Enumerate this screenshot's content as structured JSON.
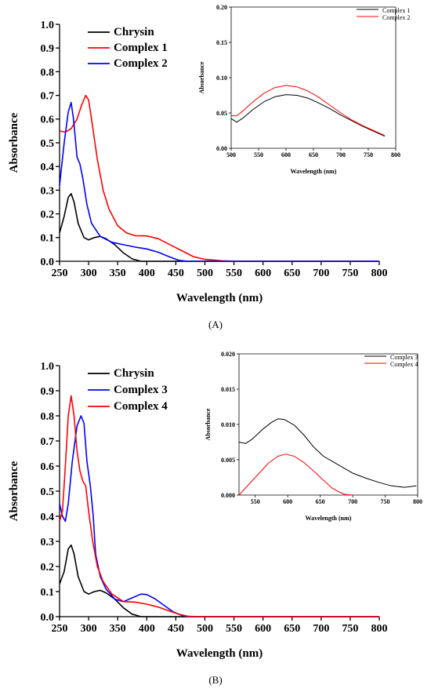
{
  "chart_data": [
    {
      "type": "line",
      "panel": "A",
      "panel_label": "(A)",
      "xlabel": "Wavelength (nm)",
      "ylabel": "Absorbance",
      "xlim": [
        250,
        800
      ],
      "ylim": [
        0,
        1.0
      ],
      "xticks": [
        250,
        300,
        350,
        400,
        450,
        500,
        550,
        600,
        650,
        700,
        750,
        800
      ],
      "yticks": [
        0.0,
        0.1,
        0.2,
        0.3,
        0.4,
        0.5,
        0.6,
        0.7,
        0.8,
        0.9,
        1.0
      ],
      "legend": "top-center",
      "series": [
        {
          "name": "Chrysin",
          "color": "#000000",
          "points": [
            [
              250,
              0.12
            ],
            [
              258,
              0.19
            ],
            [
              265,
              0.27
            ],
            [
              270,
              0.285
            ],
            [
              275,
              0.25
            ],
            [
              282,
              0.16
            ],
            [
              292,
              0.1
            ],
            [
              300,
              0.09
            ],
            [
              310,
              0.1
            ],
            [
              320,
              0.105
            ],
            [
              330,
              0.095
            ],
            [
              345,
              0.07
            ],
            [
              360,
              0.035
            ],
            [
              375,
              0.01
            ],
            [
              390,
              0.0
            ],
            [
              800,
              0.0
            ]
          ]
        },
        {
          "name": "Complex 1",
          "color": "#ff0000",
          "points": [
            [
              250,
              0.55
            ],
            [
              260,
              0.545
            ],
            [
              270,
              0.56
            ],
            [
              280,
              0.6
            ],
            [
              288,
              0.66
            ],
            [
              295,
              0.7
            ],
            [
              300,
              0.68
            ],
            [
              305,
              0.6
            ],
            [
              315,
              0.43
            ],
            [
              325,
              0.3
            ],
            [
              335,
              0.22
            ],
            [
              350,
              0.15
            ],
            [
              365,
              0.12
            ],
            [
              380,
              0.108
            ],
            [
              400,
              0.107
            ],
            [
              420,
              0.095
            ],
            [
              440,
              0.07
            ],
            [
              460,
              0.045
            ],
            [
              480,
              0.02
            ],
            [
              500,
              0.008
            ],
            [
              530,
              0.002
            ],
            [
              560,
              0.0
            ],
            [
              800,
              0.0
            ]
          ]
        },
        {
          "name": "Complex 2",
          "color": "#0000ff",
          "points": [
            [
              250,
              0.32
            ],
            [
              258,
              0.5
            ],
            [
              265,
              0.63
            ],
            [
              270,
              0.67
            ],
            [
              274,
              0.6
            ],
            [
              280,
              0.44
            ],
            [
              285,
              0.41
            ],
            [
              290,
              0.35
            ],
            [
              297,
              0.24
            ],
            [
              305,
              0.16
            ],
            [
              320,
              0.105
            ],
            [
              340,
              0.08
            ],
            [
              360,
              0.07
            ],
            [
              380,
              0.06
            ],
            [
              400,
              0.052
            ],
            [
              420,
              0.038
            ],
            [
              440,
              0.018
            ],
            [
              455,
              0.004
            ],
            [
              470,
              0.0
            ],
            [
              800,
              0.0
            ]
          ]
        }
      ],
      "inset": {
        "xlabel": "Wavelength (nm)",
        "ylabel": "Absorbance",
        "xlim": [
          500,
          800
        ],
        "ylim": [
          0,
          0.2
        ],
        "xticks": [
          500,
          550,
          600,
          650,
          700,
          750,
          800
        ],
        "yticks": [
          "0.00",
          "0.05",
          "0.10",
          "0.15",
          "0.20"
        ],
        "ytick_values": [
          0,
          0.05,
          0.1,
          0.15,
          0.2
        ],
        "legend": "top-right",
        "series": [
          {
            "name": "Complex 1",
            "color": "#000000",
            "points": [
              [
                500,
                0.042
              ],
              [
                510,
                0.037
              ],
              [
                520,
                0.042
              ],
              [
                540,
                0.055
              ],
              [
                560,
                0.066
              ],
              [
                580,
                0.073
              ],
              [
                600,
                0.076
              ],
              [
                620,
                0.075
              ],
              [
                640,
                0.071
              ],
              [
                660,
                0.064
              ],
              [
                680,
                0.056
              ],
              [
                700,
                0.047
              ],
              [
                720,
                0.039
              ],
              [
                740,
                0.031
              ],
              [
                760,
                0.024
              ],
              [
                780,
                0.017
              ]
            ]
          },
          {
            "name": "Complex 2",
            "color": "#ff0000",
            "points": [
              [
                500,
                0.046
              ],
              [
                510,
                0.046
              ],
              [
                520,
                0.052
              ],
              [
                540,
                0.066
              ],
              [
                560,
                0.078
              ],
              [
                580,
                0.086
              ],
              [
                600,
                0.089
              ],
              [
                620,
                0.087
              ],
              [
                640,
                0.081
              ],
              [
                660,
                0.072
              ],
              [
                680,
                0.061
              ],
              [
                700,
                0.05
              ],
              [
                720,
                0.04
              ],
              [
                740,
                0.032
              ],
              [
                760,
                0.025
              ],
              [
                780,
                0.018
              ]
            ]
          }
        ]
      }
    },
    {
      "type": "line",
      "panel": "B",
      "panel_label": "(B)",
      "xlabel": "Wavelength (nm)",
      "ylabel": "Absorbance",
      "xlim": [
        250,
        800
      ],
      "ylim": [
        0,
        1.0
      ],
      "xticks": [
        250,
        300,
        350,
        400,
        450,
        500,
        550,
        600,
        650,
        700,
        750,
        800
      ],
      "yticks": [
        0.0,
        0.1,
        0.2,
        0.3,
        0.4,
        0.5,
        0.6,
        0.7,
        0.8,
        0.9,
        1.0
      ],
      "legend": "top-center",
      "series": [
        {
          "name": "Chrysin",
          "color": "#000000",
          "points": [
            [
              250,
              0.13
            ],
            [
              258,
              0.18
            ],
            [
              265,
              0.27
            ],
            [
              270,
              0.285
            ],
            [
              275,
              0.25
            ],
            [
              282,
              0.16
            ],
            [
              292,
              0.1
            ],
            [
              300,
              0.09
            ],
            [
              310,
              0.1
            ],
            [
              320,
              0.105
            ],
            [
              330,
              0.095
            ],
            [
              345,
              0.07
            ],
            [
              360,
              0.035
            ],
            [
              375,
              0.01
            ],
            [
              390,
              0.0
            ],
            [
              800,
              0.0
            ]
          ]
        },
        {
          "name": "Complex 3",
          "color": "#0000ff",
          "points": [
            [
              250,
              0.45
            ],
            [
              255,
              0.4
            ],
            [
              260,
              0.38
            ],
            [
              265,
              0.45
            ],
            [
              272,
              0.62
            ],
            [
              280,
              0.76
            ],
            [
              287,
              0.8
            ],
            [
              292,
              0.77
            ],
            [
              297,
              0.62
            ],
            [
              303,
              0.52
            ],
            [
              308,
              0.4
            ],
            [
              312,
              0.25
            ],
            [
              320,
              0.16
            ],
            [
              330,
              0.11
            ],
            [
              345,
              0.07
            ],
            [
              360,
              0.06
            ],
            [
              375,
              0.075
            ],
            [
              390,
              0.09
            ],
            [
              400,
              0.088
            ],
            [
              415,
              0.07
            ],
            [
              430,
              0.045
            ],
            [
              445,
              0.02
            ],
            [
              460,
              0.005
            ],
            [
              475,
              0.0
            ],
            [
              800,
              0.0
            ]
          ]
        },
        {
          "name": "Complex 4",
          "color": "#ff0000",
          "points": [
            [
              250,
              0.38
            ],
            [
              255,
              0.42
            ],
            [
              260,
              0.6
            ],
            [
              265,
              0.8
            ],
            [
              270,
              0.88
            ],
            [
              275,
              0.8
            ],
            [
              280,
              0.66
            ],
            [
              285,
              0.58
            ],
            [
              290,
              0.54
            ],
            [
              295,
              0.52
            ],
            [
              300,
              0.42
            ],
            [
              307,
              0.3
            ],
            [
              315,
              0.2
            ],
            [
              325,
              0.14
            ],
            [
              340,
              0.09
            ],
            [
              360,
              0.06
            ],
            [
              380,
              0.058
            ],
            [
              400,
              0.05
            ],
            [
              420,
              0.038
            ],
            [
              440,
              0.022
            ],
            [
              455,
              0.01
            ],
            [
              470,
              0.002
            ],
            [
              490,
              0.0
            ],
            [
              800,
              0.0
            ]
          ]
        }
      ],
      "inset": {
        "xlabel": "Wavelength (nm)",
        "ylabel": "Absorbance",
        "xlim": [
          525,
          800
        ],
        "ylim": [
          0,
          0.02
        ],
        "xticks": [
          550,
          600,
          650,
          700,
          750,
          800
        ],
        "yticks": [
          "0.000",
          "0.005",
          "0.010",
          "0.015",
          "0.020"
        ],
        "ytick_values": [
          0,
          0.005,
          0.01,
          0.015,
          0.02
        ],
        "legend": "top-right",
        "series": [
          {
            "name": "Complex 3",
            "color": "#000000",
            "points": [
              [
                525,
                0.0075
              ],
              [
                535,
                0.0073
              ],
              [
                545,
                0.0079
              ],
              [
                560,
                0.0092
              ],
              [
                575,
                0.0103
              ],
              [
                585,
                0.0108
              ],
              [
                595,
                0.0107
              ],
              [
                610,
                0.0099
              ],
              [
                625,
                0.0085
              ],
              [
                640,
                0.0068
              ],
              [
                655,
                0.0055
              ],
              [
                670,
                0.0047
              ],
              [
                685,
                0.0039
              ],
              [
                700,
                0.0031
              ],
              [
                720,
                0.0024
              ],
              [
                740,
                0.0018
              ],
              [
                760,
                0.0013
              ],
              [
                780,
                0.0011
              ],
              [
                798,
                0.0013
              ]
            ]
          },
          {
            "name": "Complex 4",
            "color": "#ff0000",
            "points": [
              [
                525,
                0.0
              ],
              [
                540,
                0.0015
              ],
              [
                555,
                0.003
              ],
              [
                570,
                0.0045
              ],
              [
                585,
                0.0055
              ],
              [
                597,
                0.0058
              ],
              [
                610,
                0.0055
              ],
              [
                625,
                0.0046
              ],
              [
                640,
                0.0034
              ],
              [
                655,
                0.0021
              ],
              [
                668,
                0.001
              ],
              [
                680,
                0.0004
              ],
              [
                688,
                0.0001
              ],
              [
                700,
                0.0
              ]
            ]
          }
        ]
      }
    }
  ]
}
